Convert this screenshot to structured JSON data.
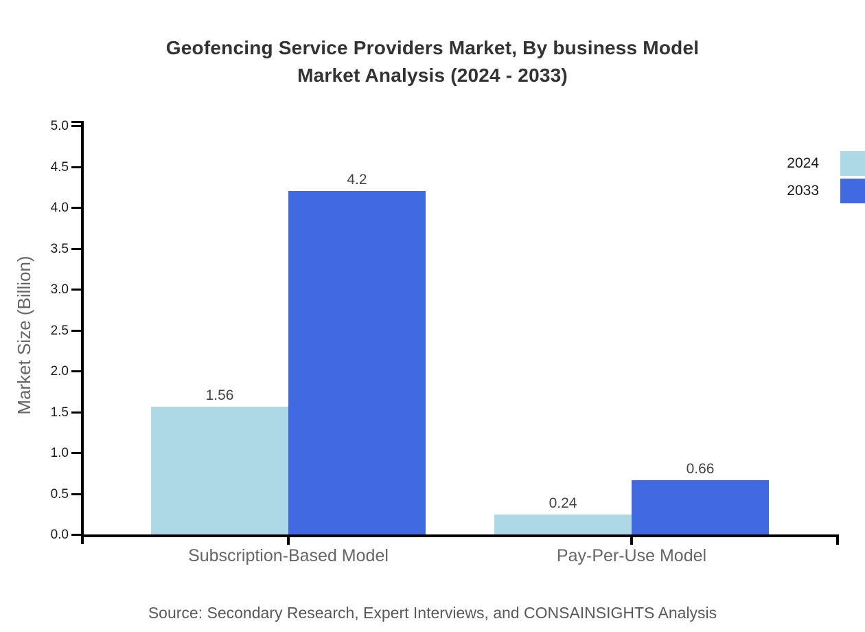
{
  "title": {
    "line1": "Geofencing Service Providers Market, By business Model",
    "line2": "Market Analysis (2024 - 2033)"
  },
  "source": "Source: Secondary Research, Expert Interviews, and CONSAINSIGHTS Analysis",
  "chart_data": {
    "type": "bar",
    "title": "Geofencing Service Providers Market, By business Model Market Analysis (2024 - 2033)",
    "categories": [
      "Subscription-Based Model",
      "Pay-Per-Use Model"
    ],
    "series": [
      {
        "name": "2024",
        "color": "#ADD8E6",
        "values": [
          1.56,
          0.24
        ],
        "labels": [
          "1.56",
          "0.24"
        ]
      },
      {
        "name": "2033",
        "color": "#4169E1",
        "values": [
          4.2,
          0.66
        ],
        "labels": [
          "4.2",
          "0.66"
        ]
      }
    ],
    "xlabel": "",
    "ylabel": "Market Size (Billion)",
    "ylim": [
      0,
      5
    ],
    "ytick_step": 0.5,
    "ytick_labels": [
      "0.0",
      "0.5",
      "1.0",
      "1.5",
      "2.0",
      "2.5",
      "3.0",
      "3.5",
      "4.0",
      "4.5",
      "5.0"
    ],
    "grid": false,
    "legend_position": "top-right",
    "axis_color": "#000000",
    "text_colors": {
      "title": "#333333",
      "value_label": "#444444",
      "tick_label": "#1a1a1a",
      "category_label": "#666666",
      "axis_title": "#666666",
      "source": "#595959"
    }
  }
}
